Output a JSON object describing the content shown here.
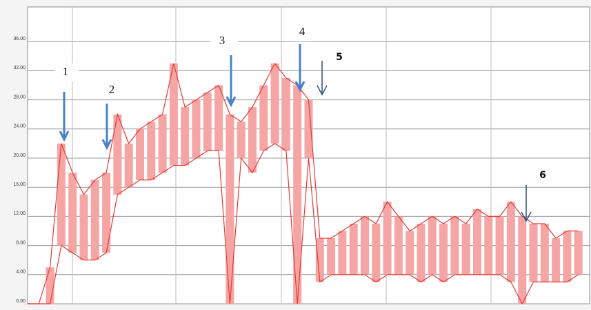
{
  "chart_data": {
    "type": "band",
    "x": [
      0,
      2,
      4,
      6,
      8,
      10,
      12,
      14,
      16,
      18,
      20,
      22,
      24,
      26,
      28,
      30,
      32,
      34,
      36,
      38,
      40,
      42,
      44,
      46,
      48,
      50,
      52,
      54,
      56,
      58,
      60,
      62,
      64,
      66,
      68,
      70,
      72,
      74,
      76,
      78,
      80,
      82,
      84,
      86,
      88,
      90,
      92,
      94,
      96,
      98
    ],
    "series": [
      {
        "color": "#e53935",
        "values": [
          0,
          0,
          5,
          22,
          18,
          15,
          17,
          18,
          26,
          22,
          24,
          25,
          26,
          33,
          27,
          28,
          29,
          30,
          26,
          25,
          27,
          30,
          33,
          31,
          30,
          28,
          9,
          9,
          10,
          11,
          12,
          11,
          14,
          12,
          10,
          11,
          12,
          11,
          12,
          11,
          13,
          12,
          12,
          14,
          12,
          11,
          11,
          9,
          10,
          10
        ]
      },
      {
        "color": "#e53935",
        "values": [
          0,
          0,
          0,
          8,
          7,
          6,
          6,
          7,
          15,
          16,
          17,
          17,
          18,
          19,
          19,
          20,
          21,
          21,
          0,
          20,
          18,
          21,
          22,
          21,
          0,
          20,
          3,
          4,
          4,
          4,
          4,
          3,
          4,
          4,
          4,
          3,
          4,
          3,
          4,
          4,
          4,
          4,
          4,
          3,
          0,
          3,
          3,
          3,
          3,
          4
        ]
      }
    ],
    "fill": "#f6a5a5",
    "xlim": [
      0,
      100
    ],
    "ylim": [
      0,
      40
    ],
    "yticks": [
      {
        "value": 0,
        "label": "0.00"
      },
      {
        "value": 4,
        "label": "4.00"
      },
      {
        "value": 8,
        "label": "8.00"
      },
      {
        "value": 12,
        "label": "12.00"
      },
      {
        "value": 16,
        "label": "16.00"
      },
      {
        "value": 20,
        "label": "20.00"
      },
      {
        "value": 24,
        "label": "24.00"
      },
      {
        "value": 28,
        "label": "28.00"
      },
      {
        "value": 32,
        "label": "32.00"
      },
      {
        "value": 36,
        "label": "36.00"
      }
    ],
    "grid": true
  },
  "annotations": [
    "1",
    "2",
    "3",
    "4",
    "5",
    "6"
  ]
}
